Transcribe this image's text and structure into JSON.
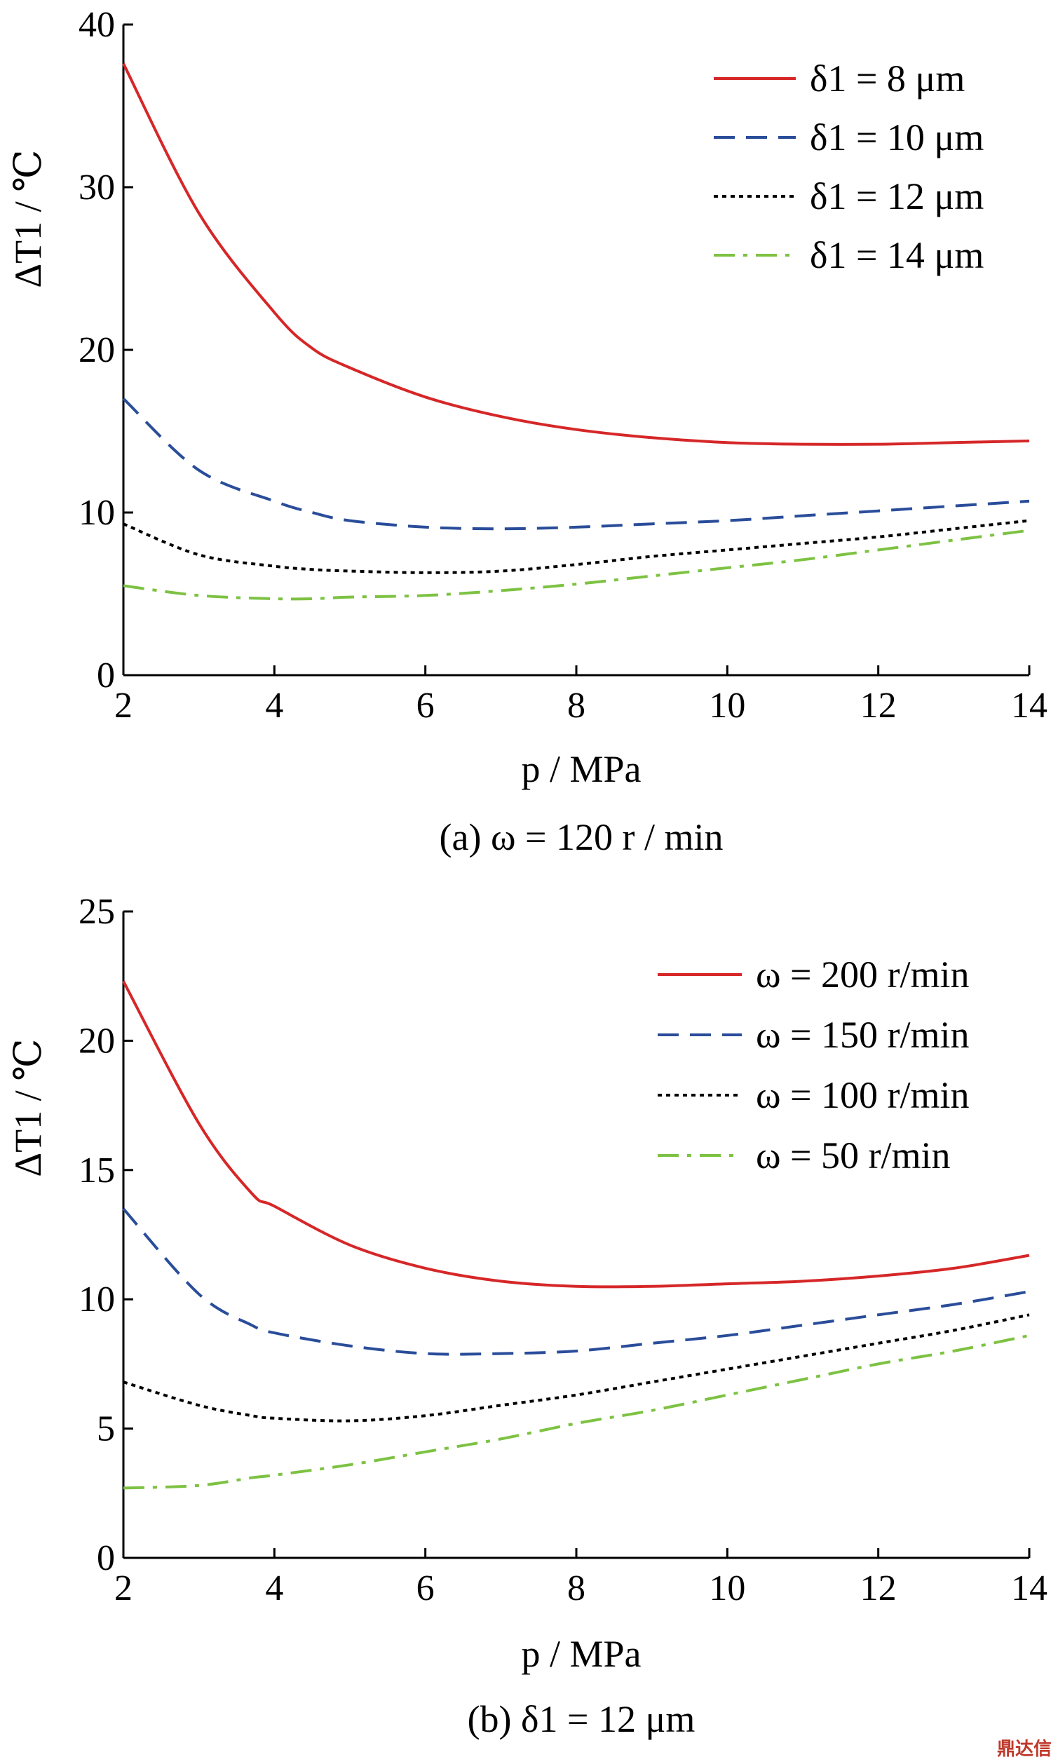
{
  "chart_data": [
    {
      "type": "line",
      "caption": "(a) ω = 120 r / min",
      "xlabel": "p / MPa",
      "ylabel": "ΔT1 / ℃",
      "xlim": [
        2,
        14
      ],
      "ylim": [
        0,
        40
      ],
      "xticks": [
        "2",
        "4",
        "6",
        "8",
        "10",
        "12",
        "14"
      ],
      "yticks": [
        "0",
        "10",
        "20",
        "30",
        "40"
      ],
      "legend_position": "top-right",
      "grid": false,
      "x": [
        2,
        3,
        4,
        4.5,
        5,
        6,
        7,
        8,
        9,
        10,
        11,
        12,
        13,
        14
      ],
      "series": [
        {
          "name": "δ1 = 8 μm",
          "color": "#d62728",
          "dash": "solid",
          "values": [
            37.6,
            28.4,
            22.3,
            20.1,
            18.9,
            17.1,
            15.9,
            15.1,
            14.6,
            14.3,
            14.2,
            14.2,
            14.3,
            14.4
          ]
        },
        {
          "name": "δ1 = 10 μm",
          "color": "#2a4d9a",
          "dash": "dashed",
          "values": [
            17.0,
            12.6,
            10.7,
            10.0,
            9.5,
            9.1,
            9.0,
            9.1,
            9.3,
            9.5,
            9.8,
            10.1,
            10.4,
            10.7
          ]
        },
        {
          "name": "δ1 = 12 μm",
          "color": "#000000",
          "dash": "dotted",
          "values": [
            9.3,
            7.4,
            6.7,
            6.5,
            6.4,
            6.3,
            6.4,
            6.8,
            7.3,
            7.7,
            8.1,
            8.5,
            9.0,
            9.5
          ]
        },
        {
          "name": "δ1 = 14 μm",
          "color": "#7dc242",
          "dash": "dashdot",
          "values": [
            5.5,
            4.9,
            4.7,
            4.7,
            4.8,
            4.9,
            5.2,
            5.6,
            6.1,
            6.6,
            7.1,
            7.7,
            8.3,
            8.9
          ]
        }
      ]
    },
    {
      "type": "line",
      "caption": "(b)  δ1 = 12 μm",
      "xlabel": "p / MPa",
      "ylabel": "ΔT1 / ℃",
      "xlim": [
        2,
        14
      ],
      "ylim": [
        0,
        25
      ],
      "xticks": [
        "2",
        "4",
        "6",
        "8",
        "10",
        "12",
        "14"
      ],
      "yticks": [
        "0",
        "5",
        "10",
        "15",
        "20",
        "25"
      ],
      "legend_position": "top-right",
      "grid": false,
      "x": [
        2,
        3,
        3.7,
        4,
        5,
        6,
        7,
        8,
        9,
        10,
        11,
        12,
        13,
        14
      ],
      "series": [
        {
          "name": "ω = 200 r/min",
          "color": "#d62728",
          "dash": "solid",
          "values": [
            22.3,
            16.8,
            14.1,
            13.6,
            12.1,
            11.2,
            10.7,
            10.5,
            10.5,
            10.6,
            10.7,
            10.9,
            11.2,
            11.7
          ]
        },
        {
          "name": "ω = 150 r/min",
          "color": "#2a4d9a",
          "dash": "dashed",
          "values": [
            13.5,
            10.2,
            9.0,
            8.7,
            8.2,
            7.9,
            7.9,
            8.0,
            8.3,
            8.6,
            9.0,
            9.4,
            9.8,
            10.3
          ]
        },
        {
          "name": "ω = 100 r/min",
          "color": "#000000",
          "dash": "dotted",
          "values": [
            6.8,
            5.9,
            5.5,
            5.4,
            5.3,
            5.5,
            5.9,
            6.3,
            6.8,
            7.3,
            7.8,
            8.3,
            8.8,
            9.4
          ]
        },
        {
          "name": "ω = 50 r/min",
          "color": "#7dc242",
          "dash": "dashdot",
          "values": [
            2.7,
            2.8,
            3.1,
            3.2,
            3.6,
            4.1,
            4.6,
            5.2,
            5.7,
            6.3,
            6.9,
            7.5,
            8.0,
            8.6
          ]
        }
      ]
    }
  ],
  "watermark": "鼎达信"
}
